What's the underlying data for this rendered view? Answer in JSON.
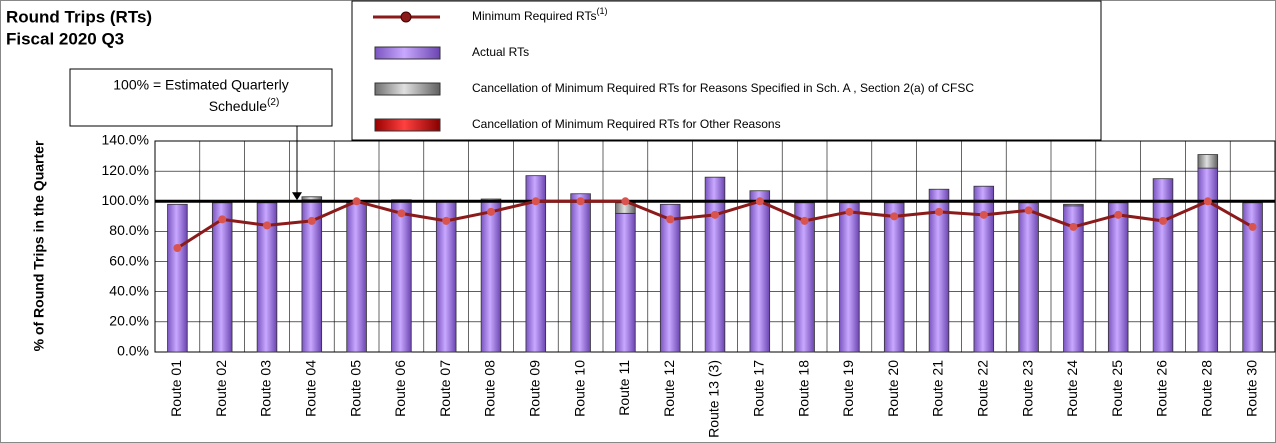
{
  "chart_data": {
    "type": "bar",
    "title_lines": [
      "Round Trips (RTs)",
      "Fiscal 2020 Q3"
    ],
    "y_label": "% of Round Trips in the Quarter",
    "annotation": {
      "text": "100% = Estimated Quarterly",
      "text2": "Schedule",
      "superscript": "(2)",
      "value": 100
    },
    "categories": [
      "Route 01",
      "Route 02",
      "Route 03",
      "Route 04",
      "Route 05",
      "Route 06",
      "Route 07",
      "Route 08",
      "Route 09",
      "Route 10",
      "Route 11",
      "Route 12",
      "Route 13 (3)",
      "Route 17",
      "Route 18",
      "Route 19",
      "Route 20",
      "Route 21",
      "Route 22",
      "Route 23",
      "Route 24",
      "Route 25",
      "Route 26",
      "Route 28",
      "Route 30"
    ],
    "series": [
      {
        "name": "Minimum Required RTs",
        "superscript": "(1)",
        "kind": "line",
        "color": "#8b1a1a",
        "marker_color": "#d9534f",
        "values": [
          69,
          88,
          84,
          87,
          100,
          92,
          87,
          93,
          100,
          100,
          100,
          88,
          91,
          100,
          87,
          93,
          90,
          93,
          91,
          94,
          83,
          91,
          87,
          100,
          83
        ]
      },
      {
        "name": "Actual RTs",
        "kind": "bar",
        "color": "#b48ff0",
        "values": [
          98,
          99,
          99,
          101,
          99,
          101,
          100,
          100,
          117,
          105,
          92,
          98,
          116,
          107,
          99,
          99,
          99,
          108,
          110,
          99,
          97,
          99,
          115,
          122,
          99
        ]
      },
      {
        "name": "Cancellation of Minimum Required RTs for Reasons Specified in Sch. A , Section 2(a) of CFSC",
        "kind": "bar",
        "color": "#a9a9a9",
        "values": [
          0,
          0,
          0,
          2,
          0,
          0,
          0,
          1.5,
          0,
          0,
          7,
          0,
          0,
          0,
          0,
          0,
          0,
          0,
          0,
          0,
          1,
          0,
          0,
          9,
          0
        ]
      },
      {
        "name": "Cancellation of Minimum Required RTs for Other Reasons",
        "kind": "bar",
        "color": "#e01010",
        "values": [
          0,
          0,
          0,
          0,
          0,
          0,
          0,
          0,
          0,
          0,
          0,
          0,
          0,
          0,
          0,
          0,
          0,
          0,
          0,
          0,
          0,
          0,
          0,
          0,
          0
        ]
      }
    ],
    "ylim": [
      0,
      140
    ],
    "yticks": [
      {
        "value": 0,
        "label": "0.0%"
      },
      {
        "value": 20,
        "label": "20.0%"
      },
      {
        "value": 40,
        "label": "40.0%"
      },
      {
        "value": 60,
        "label": "60.0%"
      },
      {
        "value": 80,
        "label": "80.0%"
      },
      {
        "value": 100,
        "label": "100.0%"
      },
      {
        "value": 120,
        "label": "120.0%"
      },
      {
        "value": 140,
        "label": "140.0%"
      }
    ],
    "grid": true
  }
}
